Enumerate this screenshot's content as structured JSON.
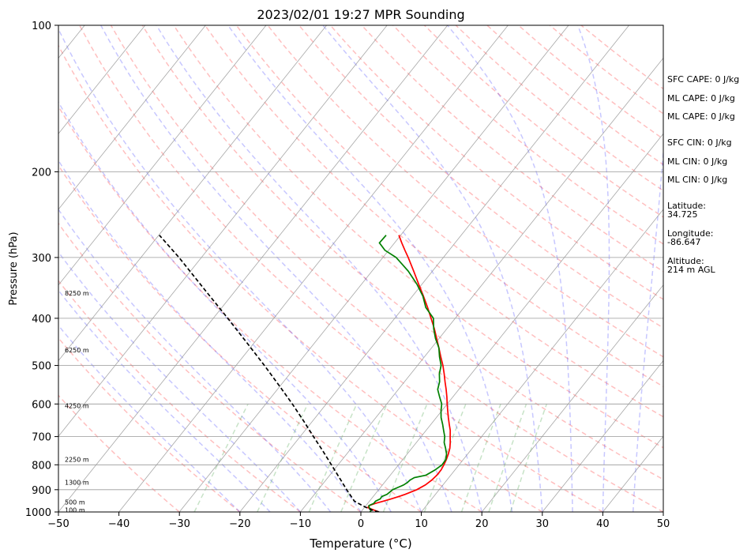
{
  "chart_data": {
    "type": "line",
    "title": "2023/02/01 19:27 MPR Sounding",
    "xlabel": "Temperature (°C)",
    "ylabel": "Pressure (hPa)",
    "xlim": [
      -50,
      50
    ],
    "ylim": [
      1000,
      100
    ],
    "y_scale": "log",
    "x_ticks": [
      -50,
      -40,
      -30,
      -20,
      -10,
      0,
      10,
      20,
      30,
      40,
      50
    ],
    "y_ticks": [
      1000,
      900,
      800,
      700,
      600,
      500,
      400,
      300,
      200,
      100
    ],
    "grid": true,
    "height_labels": [
      {
        "p": 990,
        "label": "100 m"
      },
      {
        "p": 955,
        "label": "500 m"
      },
      {
        "p": 870,
        "label": "1300 m"
      },
      {
        "p": 780,
        "label": "2250 m"
      },
      {
        "p": 605,
        "label": "4250 m"
      },
      {
        "p": 465,
        "label": "6250 m"
      },
      {
        "p": 355,
        "label": "8250 m"
      }
    ],
    "series": [
      {
        "color": "#ff0000",
        "pressure": [
          1000,
          990,
          980,
          970,
          960,
          950,
          940,
          930,
          920,
          900,
          880,
          860,
          840,
          820,
          800,
          780,
          760,
          740,
          720,
          700,
          680,
          660,
          640,
          620,
          600,
          580,
          560,
          540,
          520,
          500,
          480,
          460,
          440,
          420,
          400,
          380,
          360,
          340,
          320,
          300,
          290,
          280,
          270
        ],
        "temperature": [
          3.0,
          1.8,
          0.6,
          0.5,
          1.3,
          2.3,
          3.3,
          4.2,
          5.0,
          6.3,
          7.1,
          7.5,
          7.7,
          7.7,
          7.5,
          7.2,
          6.8,
          6.3,
          5.6,
          4.8,
          4.0,
          3.0,
          2.0,
          1.0,
          0.0,
          -1.0,
          -2.1,
          -3.3,
          -4.5,
          -5.8,
          -7.3,
          -8.8,
          -10.4,
          -12.1,
          -14.0,
          -16.0,
          -18.2,
          -20.6,
          -23.1,
          -25.8,
          -27.3,
          -28.8,
          -30.3
        ]
      },
      {
        "color": "#008000",
        "pressure": [
          1000,
          990,
          980,
          970,
          960,
          950,
          940,
          930,
          920,
          900,
          880,
          870,
          860,
          850,
          840,
          820,
          800,
          780,
          760,
          740,
          720,
          700,
          680,
          660,
          640,
          620,
          600,
          580,
          560,
          540,
          520,
          500,
          480,
          460,
          440,
          420,
          400,
          380,
          360,
          340,
          320,
          300,
          290,
          280,
          270
        ],
        "temperature": [
          1.5,
          1.5,
          0.8,
          0.5,
          1.0,
          1.0,
          1.5,
          1.4,
          2.0,
          2.3,
          3.5,
          3.8,
          3.9,
          4.3,
          5.9,
          6.7,
          7.2,
          7.1,
          6.5,
          5.6,
          4.6,
          3.9,
          2.9,
          1.9,
          0.8,
          -0.1,
          -0.9,
          -2.2,
          -3.5,
          -4.2,
          -5.3,
          -6.1,
          -7.5,
          -8.8,
          -10.6,
          -12.2,
          -13.6,
          -16.3,
          -18.3,
          -20.9,
          -24.0,
          -27.8,
          -30.6,
          -32.5,
          -32.4
        ]
      },
      {
        "color": "#000000",
        "style": "dashed",
        "pressure": [
          1000,
          990,
          980,
          970,
          950,
          900,
          850,
          800,
          750,
          700,
          650,
          600,
          550,
          500,
          450,
          400,
          350,
          300,
          270
        ],
        "temperature": [
          3.0,
          1.4,
          0.4,
          -0.6,
          -2.5,
          -5.3,
          -8.1,
          -11.1,
          -14.3,
          -17.8,
          -21.5,
          -25.6,
          -30.2,
          -35.3,
          -41.1,
          -47.6,
          -55.1,
          -63.7,
          -69.9
        ]
      }
    ]
  },
  "side_panel": {
    "sfc_cape": "SFC CAPE: 0 J/kg",
    "ml_cape_1": "ML CAPE: 0 J/kg",
    "ml_cape_2": "ML CAPE: 0 J/kg",
    "sfc_cin": "SFC CIN: 0 J/kg",
    "ml_cin_1": "ML CIN: 0 J/kg",
    "ml_cin_2": "ML CIN: 0 J/kg",
    "latitude_label": "Latitude:",
    "latitude_value": "34.725",
    "longitude_label": "Longitude:",
    "longitude_value": "-86.647",
    "altitude_label": "Altitude:",
    "altitude_value": "214 m AGL"
  }
}
